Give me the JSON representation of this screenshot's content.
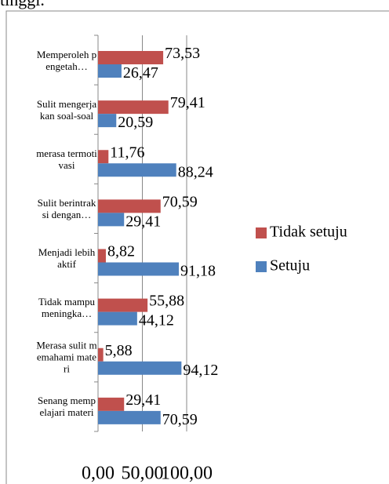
{
  "caption": "tinggi.",
  "chart_data": {
    "type": "hbar",
    "categories": [
      "Memperoleh pengetah…",
      "Sulit mengerjakan soal-soal",
      "merasa termotivasi",
      "Sulit berintraksi dengan…",
      "Menjadi lebih aktif",
      "Tidak mampu meningka…",
      "Merasa sulit memahami materi",
      "Senang mempelajari materi"
    ],
    "series": [
      {
        "name": "Tidak setuju",
        "color": "#c0504d",
        "values": [
          73.53,
          79.41,
          11.76,
          70.59,
          8.82,
          55.88,
          5.88,
          29.41
        ],
        "value_labels": [
          "73,53",
          "79,41",
          "11,76",
          "70,59",
          "8,82",
          "55,88",
          "5,88",
          "29,41"
        ]
      },
      {
        "name": "Setuju",
        "color": "#4f81bd",
        "values": [
          26.47,
          20.59,
          88.24,
          29.41,
          91.18,
          44.12,
          94.12,
          70.59
        ],
        "value_labels": [
          "26,47",
          "20,59",
          "88,24",
          "29,41",
          "91,18",
          "44,12",
          "94,12",
          "70,59"
        ]
      }
    ],
    "xlim": [
      0,
      100
    ],
    "xticks": [
      {
        "value": 0,
        "label": "0,00"
      },
      {
        "value": 50,
        "label": "50,00"
      },
      {
        "value": 100,
        "label": "100,00"
      }
    ],
    "grid": true,
    "legend": "right"
  }
}
